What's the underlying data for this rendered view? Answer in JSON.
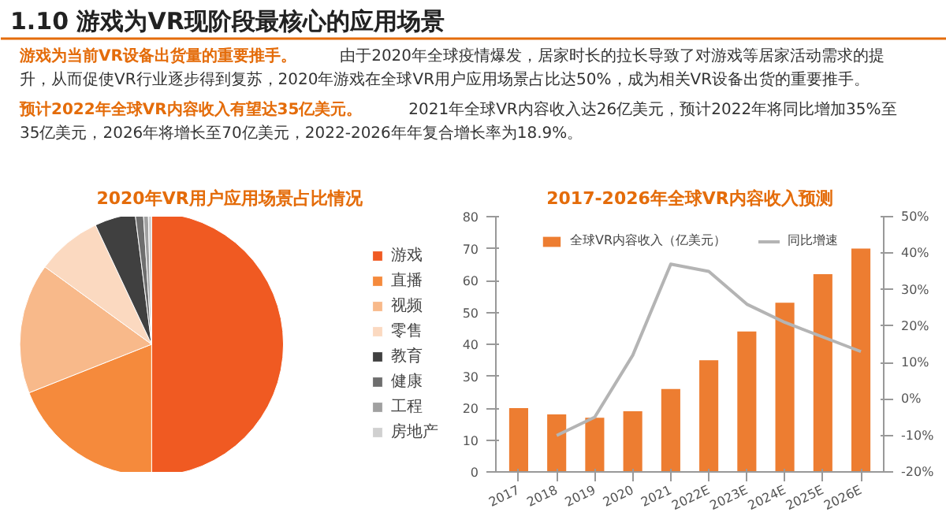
{
  "chart_data": [
    {
      "type": "other",
      "title": "1.10 游戏为VR现阶段最核心的应用场景",
      "annotations": [
        "游戏为当前VR设备出货量的重要推手。",
        "由于2020年全球疫情爆发，居家时长的拉长导致了对游戏等居家活动需求的提升，从而促使VR行业逐步得到复苏，2020年游戏在全球VR用户应用场景占比达50%，成为相关VR设备出货的重要推手。",
        "预计2022年全球VR内容收入有望达35亿美元。",
        "2021年全球VR内容收入达26亿美元，预计2022年将同比增加35%至35亿美元，2026年将增长至70亿美元，2022-2026年年复合增长率为18.9%。"
      ]
    },
    {
      "type": "pie",
      "title": "2020年VR用户应用场景占比情况",
      "legend": "right",
      "categories": [
        "游戏",
        "直播",
        "视频",
        "零售",
        "教育",
        "健康",
        "工程",
        "房地产"
      ],
      "values": [
        50,
        19,
        16,
        8,
        5,
        1,
        0.6,
        0.4
      ],
      "colors": [
        "#f05a22",
        "#f58a3c",
        "#f8b98a",
        "#fbd9c0",
        "#404040",
        "#6e6e6e",
        "#a0a0a0",
        "#d0d0d0"
      ]
    },
    {
      "type": "bar",
      "title": "2017-2026年全球VR内容收入预测",
      "legend": "top",
      "grid": false,
      "categories": [
        "2017",
        "2018",
        "2019",
        "2020",
        "2021",
        "2022E",
        "2023E",
        "2024E",
        "2025E",
        "2026E"
      ],
      "ylim": [
        0,
        80
      ],
      "yticks": [
        0,
        10,
        20,
        30,
        40,
        50,
        60,
        70,
        80
      ],
      "y2lim": [
        -20,
        50
      ],
      "y2ticks": [
        {
          "value": -20,
          "label": "-20%"
        },
        {
          "value": -10,
          "label": "-10%"
        },
        {
          "value": 0,
          "label": "0%"
        },
        {
          "value": 10,
          "label": "10%"
        },
        {
          "value": 20,
          "label": "20%"
        },
        {
          "value": 30,
          "label": "30%"
        },
        {
          "value": 40,
          "label": "40%"
        },
        {
          "value": 50,
          "label": "50%"
        }
      ],
      "series": [
        {
          "name": "全球VR内容收入（亿美元）",
          "type": "bar",
          "color": "#ed7d31",
          "values": [
            20,
            18,
            17,
            19,
            26,
            35,
            44,
            53,
            62,
            70
          ]
        },
        {
          "name": "同比增速",
          "type": "line",
          "axis": "y2",
          "color": "#b4b4b4",
          "values": [
            null,
            -10,
            -5,
            12,
            37,
            35,
            26,
            21,
            17,
            13
          ]
        }
      ]
    }
  ]
}
